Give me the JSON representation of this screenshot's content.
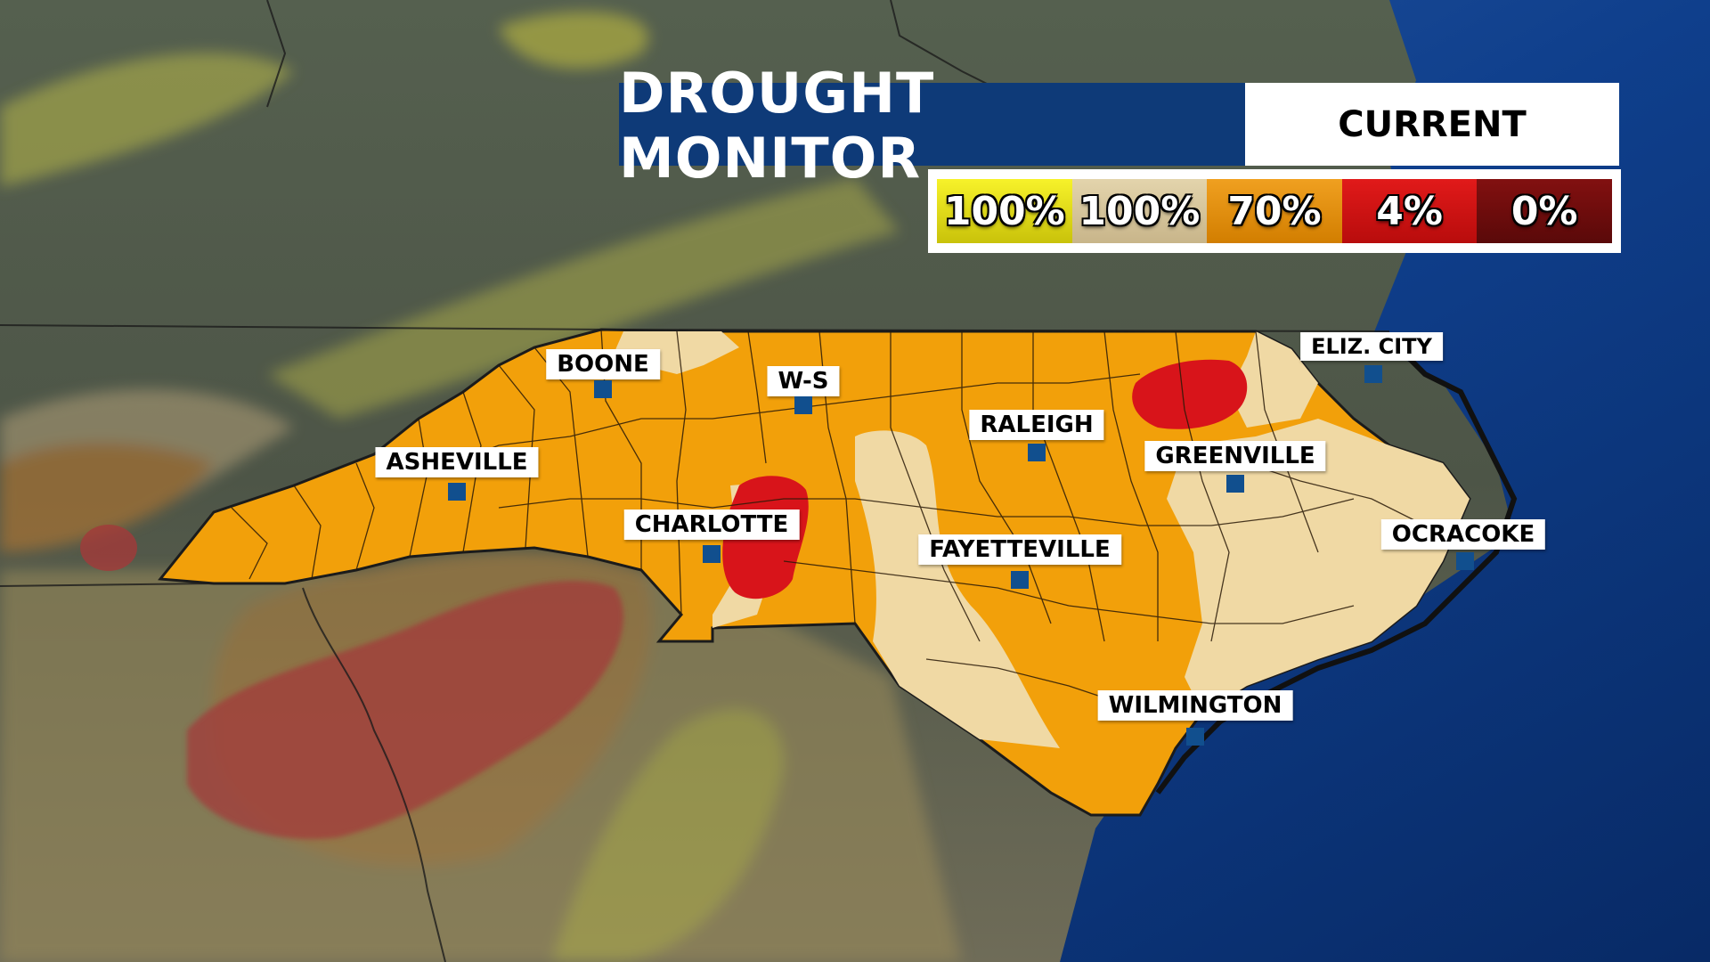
{
  "header": {
    "title": "DROUGHT MONITOR",
    "subtitle": "CURRENT"
  },
  "legend": [
    {
      "label": "100%",
      "color": "#f1ee1d"
    },
    {
      "label": "100%",
      "color": "#d9c79e"
    },
    {
      "label": "70%",
      "color": "#e48e06"
    },
    {
      "label": "4%",
      "color": "#d11313"
    },
    {
      "label": "0%",
      "color": "#6e0c0c"
    }
  ],
  "colors": {
    "ocean": "#0d3c8c",
    "state_orange": "#f2a00a",
    "state_tan": "#f0d9a4",
    "extreme_red": "#d8141a"
  },
  "cities": [
    {
      "name": "BOONE"
    },
    {
      "name": "W-S"
    },
    {
      "name": "ASHEVILLE"
    },
    {
      "name": "RALEIGH"
    },
    {
      "name": "ELIZ. CITY"
    },
    {
      "name": "GREENVILLE"
    },
    {
      "name": "CHARLOTTE"
    },
    {
      "name": "FAYETTEVILLE"
    },
    {
      "name": "OCRACOKE"
    },
    {
      "name": "WILMINGTON"
    }
  ]
}
